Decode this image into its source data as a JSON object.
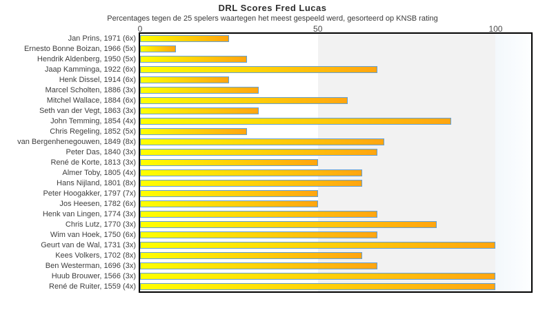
{
  "title": "DRL Scores Fred Lucas",
  "subtitle": "Percentages tegen de 25 spelers waartegen het meest gespeeld werd, gesorteerd op KNSB rating",
  "chart_data": {
    "type": "bar",
    "orientation": "horizontal",
    "title": "DRL Scores Fred Lucas",
    "subtitle": "Percentages tegen de 25 spelers waartegen het meest gespeeld werd, gesorteerd op KNSB rating",
    "xlabel": "",
    "ylabel": "",
    "xlim": [
      0,
      110
    ],
    "xticks": [
      0,
      50,
      100
    ],
    "legend": "none",
    "grid": "background-bands",
    "categories": [
      "Jan Prins, 1971 (6x)",
      "Ernesto Bonne Boizan, 1966 (5x)",
      "Hendrik Aldenberg, 1950 (5x)",
      "Jaap Kamminga, 1922 (6x)",
      "Henk Dissel, 1914 (6x)",
      "Marcel Scholten, 1886 (3x)",
      "Mitchel Wallace, 1884 (6x)",
      "Seth van der Vegt, 1863 (3x)",
      "John Temming, 1854 (4x)",
      "Chris Regeling, 1852 (5x)",
      "van Bergenhenegouwen, 1849 (8x)",
      "Peter Das, 1840 (3x)",
      "René de Korte, 1813 (3x)",
      "Almer Toby, 1805 (4x)",
      "Hans Nijland, 1801 (8x)",
      "Peter Hoogakker, 1797 (7x)",
      "Jos Heesen, 1782 (6x)",
      "Henk van Lingen, 1774 (3x)",
      "Chris Lutz, 1770 (3x)",
      "Wim van Hoek, 1750 (6x)",
      "Geurt van de Wal, 1731 (3x)",
      "Kees Volkers, 1702 (8x)",
      "Ben Westerman, 1696 (3x)",
      "Huub Brouwer, 1566 (3x)",
      "René de Ruiter, 1559 (4x)"
    ],
    "values": [
      25,
      10,
      30,
      66.67,
      25,
      33.33,
      58.33,
      33.33,
      87.5,
      30,
      68.75,
      66.67,
      50,
      62.5,
      62.5,
      50,
      50,
      66.67,
      83.33,
      66.67,
      100,
      62.5,
      66.67,
      100,
      100
    ],
    "colors": {
      "bar_gradient_start": "#ffff00",
      "bar_gradient_end": "#ffa511",
      "bar_border": "#5f9fd8",
      "band_50_100": "#f2f2f2",
      "band_over_100_start": "#f3f8fc",
      "band_over_100_end": "#fdfeff",
      "plot_border": "#000000"
    }
  }
}
